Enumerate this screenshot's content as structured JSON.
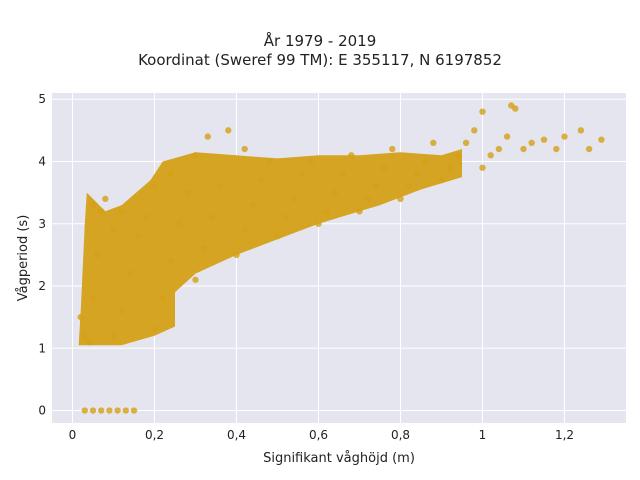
{
  "chart_data": {
    "type": "scatter",
    "title": "År 1979 - 2019",
    "subtitle": "Koordinat (Sweref 99 TM): E 355117, N 6197852",
    "xlabel": "Signifikant våghöjd (m)",
    "ylabel": "Vågperiod (s)",
    "xlim": [
      -0.05,
      1.35
    ],
    "ylim": [
      -0.2,
      5.1
    ],
    "x_ticks": [
      0,
      0.2,
      0.4,
      0.6,
      0.8,
      1,
      1.2
    ],
    "x_tick_labels": [
      "0",
      "0,2",
      "0,4",
      "0,6",
      "0,8",
      "1",
      "1,2"
    ],
    "y_ticks": [
      0,
      1,
      2,
      3,
      4,
      5
    ],
    "y_tick_labels": [
      "0",
      "1",
      "2",
      "3",
      "4",
      "5"
    ],
    "grid": true,
    "background": "#e5e5ef",
    "marker_color": "#d4a017",
    "series": [
      {
        "points": [
          [
            0.03,
            0
          ],
          [
            0.05,
            0
          ],
          [
            0.07,
            0
          ],
          [
            0.09,
            0
          ],
          [
            0.11,
            0
          ],
          [
            0.13,
            0
          ],
          [
            0.15,
            0
          ],
          [
            0.02,
            1.5
          ],
          [
            0.03,
            1.2
          ],
          [
            0.04,
            1.1
          ],
          [
            0.05,
            1.8
          ],
          [
            0.06,
            2.5
          ],
          [
            0.07,
            3.2
          ],
          [
            0.08,
            3.4
          ],
          [
            0.05,
            3.3
          ],
          [
            0.1,
            1.2
          ],
          [
            0.12,
            1.6
          ],
          [
            0.14,
            2.2
          ],
          [
            0.16,
            2.8
          ],
          [
            0.18,
            3.1
          ],
          [
            0.1,
            2.9
          ],
          [
            0.12,
            3.2
          ],
          [
            0.2,
            1.3
          ],
          [
            0.22,
            1.8
          ],
          [
            0.24,
            2.4
          ],
          [
            0.26,
            3.0
          ],
          [
            0.28,
            3.5
          ],
          [
            0.2,
            3.6
          ],
          [
            0.24,
            3.8
          ],
          [
            0.3,
            2.1
          ],
          [
            0.32,
            2.6
          ],
          [
            0.34,
            3.1
          ],
          [
            0.36,
            3.6
          ],
          [
            0.3,
            4.1
          ],
          [
            0.33,
            4.4
          ],
          [
            0.38,
            4.5
          ],
          [
            0.4,
            2.5
          ],
          [
            0.42,
            2.9
          ],
          [
            0.44,
            3.3
          ],
          [
            0.46,
            3.7
          ],
          [
            0.48,
            4.0
          ],
          [
            0.42,
            4.2
          ],
          [
            0.5,
            2.8
          ],
          [
            0.52,
            3.1
          ],
          [
            0.54,
            3.4
          ],
          [
            0.56,
            3.8
          ],
          [
            0.58,
            4.0
          ],
          [
            0.6,
            3.0
          ],
          [
            0.62,
            3.2
          ],
          [
            0.64,
            3.5
          ],
          [
            0.66,
            3.8
          ],
          [
            0.68,
            4.1
          ],
          [
            0.7,
            3.2
          ],
          [
            0.72,
            3.4
          ],
          [
            0.74,
            3.6
          ],
          [
            0.76,
            3.9
          ],
          [
            0.78,
            4.2
          ],
          [
            0.8,
            3.4
          ],
          [
            0.82,
            3.6
          ],
          [
            0.84,
            3.8
          ],
          [
            0.86,
            4.0
          ],
          [
            0.88,
            4.3
          ],
          [
            0.9,
            3.7
          ],
          [
            0.92,
            3.9
          ],
          [
            0.94,
            4.1
          ],
          [
            0.96,
            4.3
          ],
          [
            0.98,
            4.5
          ],
          [
            1.0,
            3.9
          ],
          [
            1.02,
            4.1
          ],
          [
            1.04,
            4.2
          ],
          [
            1.06,
            4.4
          ],
          [
            1.07,
            4.9
          ],
          [
            1.08,
            4.85
          ],
          [
            1.0,
            4.8
          ],
          [
            1.1,
            4.2
          ],
          [
            1.12,
            4.3
          ],
          [
            1.15,
            4.35
          ],
          [
            1.18,
            4.2
          ],
          [
            1.2,
            4.4
          ],
          [
            1.24,
            4.5
          ],
          [
            1.26,
            4.2
          ],
          [
            1.29,
            4.35
          ]
        ]
      }
    ]
  }
}
